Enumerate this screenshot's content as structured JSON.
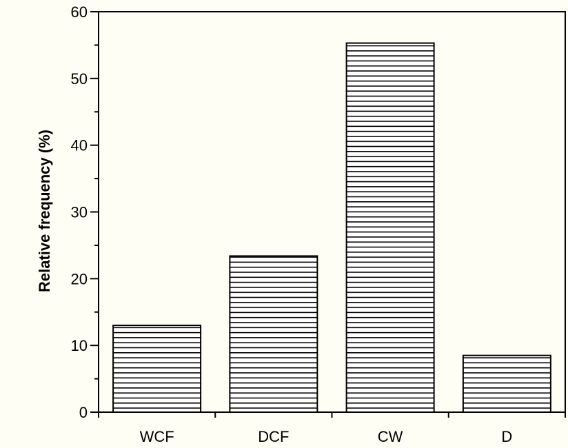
{
  "chart_data": {
    "type": "bar",
    "categories": [
      "WCF",
      "DCF",
      "CW",
      "D"
    ],
    "values": [
      13.0,
      23.4,
      55.3,
      8.5
    ],
    "title": "",
    "xlabel": "",
    "ylabel": "Relative frequency (%)",
    "ylim": [
      0,
      60
    ],
    "yticks": [
      0,
      10,
      20,
      30,
      40,
      50,
      60
    ],
    "ytick_labels": [
      "0",
      "10",
      "20",
      "30",
      "40",
      "50",
      "60"
    ],
    "bar_fill": "horizontal-hatch",
    "grid": false,
    "legend": "none"
  },
  "colors": {
    "background": "#fefef4",
    "bar_fill": "#ffffff",
    "hatch": "#000000",
    "axis": "#000000"
  }
}
